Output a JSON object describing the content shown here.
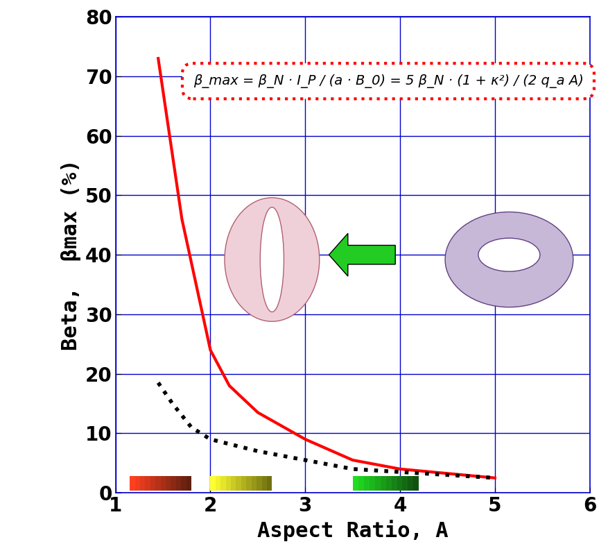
{
  "chart_data": {
    "type": "line",
    "annotation": "β_max = β_N · I_P / (a · B_0) = 5 β_N · (1 + κ²) / (2 q_a A)",
    "x_label": "Aspect Ratio, A",
    "y_label": "Beta,  βmax (%)",
    "series": [
      {
        "color": "#ff0000",
        "line_style": "solid",
        "x": [
          1.45,
          1.7,
          2.0,
          2.2,
          2.5,
          3.0,
          3.5,
          4.0,
          5.0
        ],
        "values": [
          73,
          46,
          24,
          18,
          13.5,
          9,
          5.5,
          4,
          2.5
        ]
      },
      {
        "color": "#000000",
        "line_style": "dotted",
        "x": [
          1.45,
          1.6,
          1.8,
          2.0,
          2.5,
          3.0,
          3.5,
          4.0,
          5.0
        ],
        "values": [
          18.5,
          15,
          11,
          9,
          7,
          5.5,
          4,
          3.5,
          2.5
        ]
      }
    ],
    "xlim": [
      1,
      6
    ],
    "xticks": [
      1,
      2,
      3,
      4,
      5,
      6
    ],
    "ylim": [
      0,
      80
    ],
    "yticks": [
      0,
      10,
      20,
      30,
      40,
      50,
      60,
      70,
      80
    ],
    "grid": true
  }
}
